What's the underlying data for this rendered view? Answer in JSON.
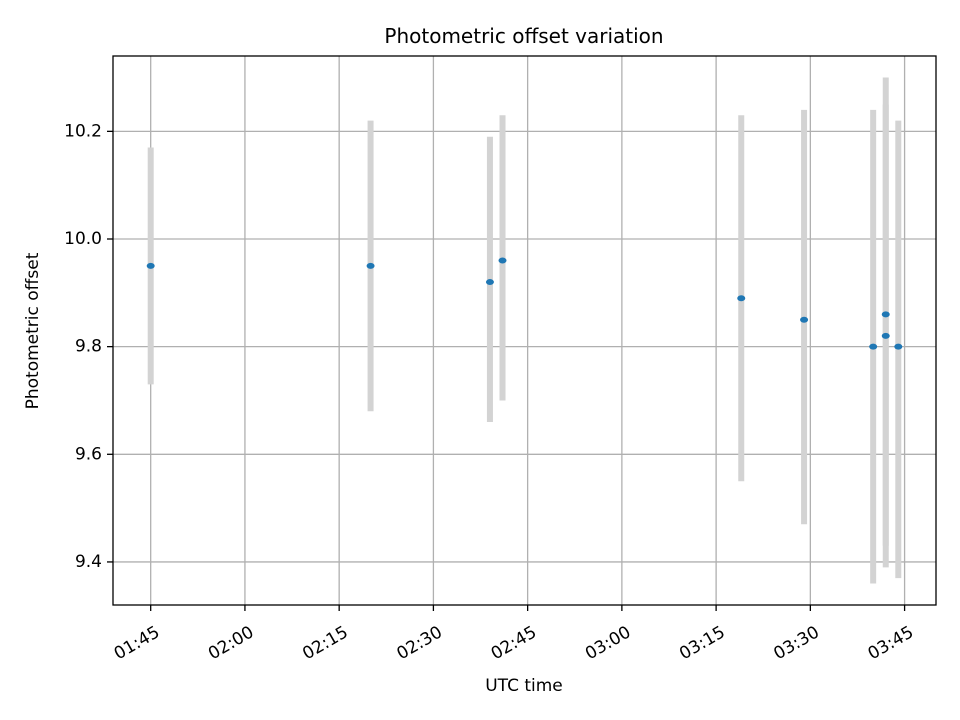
{
  "chart_data": {
    "type": "scatter",
    "title": "Photometric offset variation",
    "xlabel": "UTC time",
    "ylabel": "Photometric offset",
    "x_unit": "HH:MM UTC",
    "xlim": [
      "01:39",
      "03:50"
    ],
    "ylim": [
      9.32,
      10.34
    ],
    "xticks": [
      "01:45",
      "02:00",
      "02:15",
      "02:30",
      "02:45",
      "03:00",
      "03:15",
      "03:30",
      "03:45"
    ],
    "yticks": [
      9.4,
      9.6,
      9.8,
      10.0,
      10.2
    ],
    "grid": true,
    "colors": {
      "point": "#1f77b4",
      "errorbar": "#d3d3d3",
      "grid": "#b0b0b0"
    },
    "series": [
      {
        "points": [
          {
            "x": "01:45",
            "y": 9.95,
            "ylow": 9.73,
            "yhigh": 10.17
          },
          {
            "x": "02:20",
            "y": 9.95,
            "ylow": 9.68,
            "yhigh": 10.22
          },
          {
            "x": "02:39",
            "y": 9.92,
            "ylow": 9.66,
            "yhigh": 10.19
          },
          {
            "x": "02:41",
            "y": 9.96,
            "ylow": 9.7,
            "yhigh": 10.23
          },
          {
            "x": "03:19",
            "y": 9.89,
            "ylow": 9.55,
            "yhigh": 10.23
          },
          {
            "x": "03:29",
            "y": 9.85,
            "ylow": 9.47,
            "yhigh": 10.24
          },
          {
            "x": "03:40",
            "y": 9.8,
            "ylow": 9.36,
            "yhigh": 10.24
          },
          {
            "x": "03:42",
            "y": 9.86,
            "ylow": 9.43,
            "yhigh": 10.3
          },
          {
            "x": "03:42",
            "y": 9.82,
            "ylow": 9.39,
            "yhigh": 10.25
          },
          {
            "x": "03:44",
            "y": 9.8,
            "ylow": 9.37,
            "yhigh": 10.22
          }
        ]
      }
    ]
  }
}
